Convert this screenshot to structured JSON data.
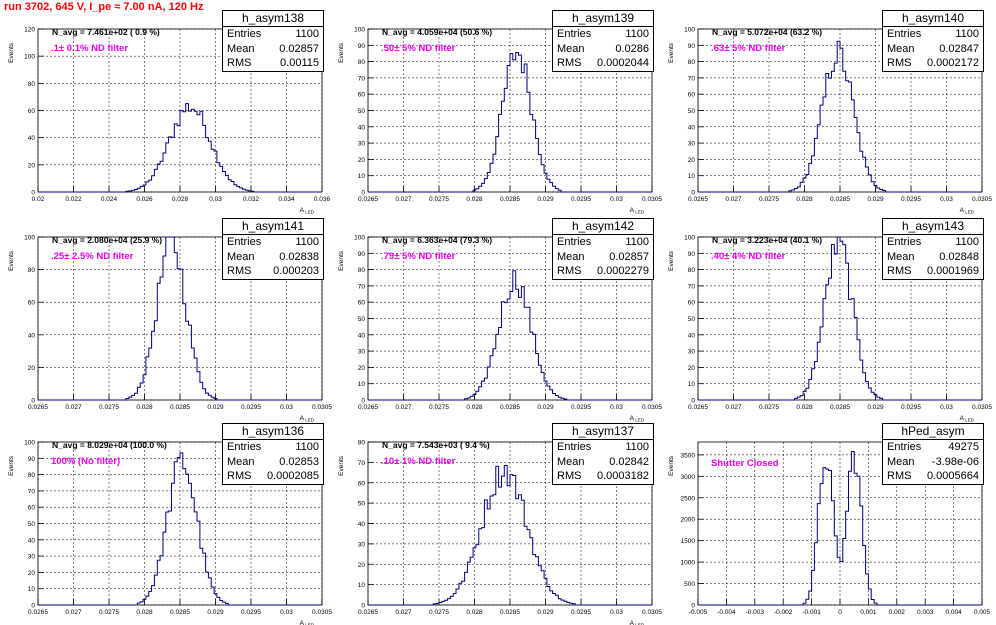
{
  "title": "run 3702,   645 V, I_pe ≈ 7.00 nA, 120 Hz",
  "colors": {
    "hist": "#000080",
    "title": "#ff0000",
    "filter": "#ee00ee"
  },
  "chart_data": [
    {
      "type": "bar",
      "stat_title": "h_asym138",
      "ylabel": "Events",
      "xlabel": "A_LED",
      "xlim": [
        0.02,
        0.036
      ],
      "ylim": [
        0,
        120
      ],
      "xticks": [
        "0.02",
        "0.022",
        "0.024",
        "0.026",
        "0.028",
        "0.03",
        "0.032",
        "0.034",
        "0.036"
      ],
      "yticks": [
        "0",
        "20",
        "40",
        "60",
        "80",
        "100",
        "120"
      ],
      "navg": "N_avg = 7.461e+02 ( 0.9 %)",
      "filter": ".1± 0.1% ND filter",
      "entries": "1100",
      "mean": "0.02857",
      "rms": "0.00115",
      "mu": 0.02857,
      "sigma": 0.00115,
      "peak": 63,
      "dist": "gauss",
      "bins": "auto"
    },
    {
      "type": "bar",
      "stat_title": "h_asym139",
      "ylabel": "Events",
      "xlabel": "A_LED",
      "xlim": [
        0.0265,
        0.0305
      ],
      "ylim": [
        0,
        100
      ],
      "xticks": [
        "0.0265",
        "0.027",
        "0.0275",
        "0.028",
        "0.0285",
        "0.029",
        "0.0295",
        "0.03",
        "0.0305"
      ],
      "yticks": [
        "0",
        "10",
        "20",
        "30",
        "40",
        "50",
        "60",
        "70",
        "80",
        "90",
        "100"
      ],
      "navg": "N_avg = 4.059e+04 (50.6 %)",
      "filter": ".50± 5% ND filter",
      "entries": "1100",
      "mean": "0.0286",
      "rms": "0.0002044",
      "mu": 0.0286,
      "sigma": 0.0002044,
      "peak": 86,
      "dist": "gauss",
      "bins": "auto"
    },
    {
      "type": "bar",
      "stat_title": "h_asym140",
      "ylabel": "Events",
      "xlabel": "A_LED",
      "xlim": [
        0.0265,
        0.0305
      ],
      "ylim": [
        0,
        100
      ],
      "xticks": [
        "0.0265",
        "0.027",
        "0.0275",
        "0.028",
        "0.0285",
        "0.029",
        "0.0295",
        "0.03",
        "0.0305"
      ],
      "yticks": [
        "0",
        "10",
        "20",
        "30",
        "40",
        "50",
        "60",
        "70",
        "80",
        "90",
        "100"
      ],
      "navg": "N_avg = 5.072e+04 (63.2 %)",
      "filter": ".63± 5% ND filter",
      "entries": "1100",
      "mean": "0.02847",
      "rms": "0.0002172",
      "mu": 0.02847,
      "sigma": 0.0002172,
      "peak": 85,
      "dist": "gauss",
      "bins": "auto"
    },
    {
      "type": "bar",
      "stat_title": "h_asym141",
      "ylabel": "Events",
      "xlabel": "A_LED",
      "xlim": [
        0.0265,
        0.0305
      ],
      "ylim": [
        0,
        100
      ],
      "xticks": [
        "0.0265",
        "0.027",
        "0.0275",
        "0.028",
        "0.0285",
        "0.029",
        "0.0295",
        "0.03",
        "0.0305"
      ],
      "yticks": [
        "0",
        "20",
        "40",
        "60",
        "80",
        "100"
      ],
      "navg": "N_avg = 2.080e+04 (25.9 %)",
      "filter": ".25± 2.5% ND filter",
      "entries": "1100",
      "mean": "0.02838",
      "rms": "0.000203",
      "mu": 0.02838,
      "sigma": 0.000203,
      "peak": 97,
      "dist": "gauss",
      "bins": "auto"
    },
    {
      "type": "bar",
      "stat_title": "h_asym142",
      "ylabel": "Events",
      "xlabel": "A_LED",
      "xlim": [
        0.0265,
        0.0305
      ],
      "ylim": [
        0,
        100
      ],
      "xticks": [
        "0.0265",
        "0.027",
        "0.0275",
        "0.028",
        "0.0285",
        "0.029",
        "0.0295",
        "0.03",
        "0.0305"
      ],
      "yticks": [
        "0",
        "10",
        "20",
        "30",
        "40",
        "50",
        "60",
        "70",
        "80",
        "90",
        "100"
      ],
      "navg": "N_avg = 6.363e+04 (79.3 %)",
      "filter": ".79± 5% ND filter",
      "entries": "1100",
      "mean": "0.02857",
      "rms": "0.0002279",
      "mu": 0.02857,
      "sigma": 0.0002279,
      "peak": 74,
      "dist": "gauss",
      "bins": "auto"
    },
    {
      "type": "bar",
      "stat_title": "h_asym143",
      "ylabel": "Events",
      "xlabel": "A_LED",
      "xlim": [
        0.0265,
        0.0305
      ],
      "ylim": [
        0,
        100
      ],
      "xticks": [
        "0.0265",
        "0.027",
        "0.0275",
        "0.028",
        "0.0285",
        "0.029",
        "0.0295",
        "0.03",
        "0.0305"
      ],
      "yticks": [
        "0",
        "10",
        "20",
        "30",
        "40",
        "50",
        "60",
        "70",
        "80",
        "90",
        "100"
      ],
      "navg": "N_avg = 3.223e+04 (40.1 %)",
      "filter": ".40± 4% ND filter",
      "entries": "1100",
      "mean": "0.02848",
      "rms": "0.0001969",
      "mu": 0.02848,
      "sigma": 0.0001969,
      "peak": 96,
      "dist": "gauss",
      "bins": "auto"
    },
    {
      "type": "bar",
      "stat_title": "h_asym136",
      "ylabel": "Events",
      "xlabel": "A_LED",
      "xlim": [
        0.0265,
        0.0305
      ],
      "ylim": [
        0,
        100
      ],
      "xticks": [
        "0.0265",
        "0.027",
        "0.0275",
        "0.028",
        "0.0285",
        "0.029",
        "0.0295",
        "0.03",
        "0.0305"
      ],
      "yticks": [
        "0",
        "10",
        "20",
        "30",
        "40",
        "50",
        "60",
        "70",
        "80",
        "90",
        "100"
      ],
      "navg": "N_avg = 8.029e+04 (100.0 %)",
      "filter": "100% (No filter)",
      "entries": "1100",
      "mean": "0.02853",
      "rms": "0.0002085",
      "mu": 0.02853,
      "sigma": 0.0002085,
      "peak": 88,
      "dist": "gauss",
      "bins": "auto"
    },
    {
      "type": "bar",
      "stat_title": "h_asym137",
      "ylabel": "Events",
      "xlabel": "A_LED",
      "xlim": [
        0.0265,
        0.0305
      ],
      "ylim": [
        0,
        80
      ],
      "xticks": [
        "0.0265",
        "0.027",
        "0.0275",
        "0.028",
        "0.0285",
        "0.029",
        "0.0295",
        "0.03",
        "0.0305"
      ],
      "yticks": [
        "0",
        "10",
        "20",
        "30",
        "40",
        "50",
        "60",
        "70",
        "80"
      ],
      "navg": "N_avg = 7.543e+03 ( 9.4 %)",
      "filter": ".10± 1% ND filter",
      "entries": "1100",
      "mean": "0.02842",
      "rms": "0.0003182",
      "mu": 0.02842,
      "sigma": 0.0003182,
      "peak": 66,
      "dist": "gauss",
      "bins": "auto"
    },
    {
      "type": "bar",
      "stat_title": "hPed_asym",
      "ylabel": "Events",
      "xlabel": "",
      "xlim": [
        -0.005,
        0.005
      ],
      "ylim": [
        0,
        3800
      ],
      "xticks": [
        "-0.005",
        "-0.004",
        "-0.003",
        "-0.002",
        "-0.001",
        "0",
        "0.001",
        "0.002",
        "0.003",
        "0.004",
        "0.005"
      ],
      "yticks": [
        "0",
        "500",
        "1000",
        "1500",
        "2000",
        "2500",
        "3000",
        "3500"
      ],
      "navg": "",
      "filter": "Shutter Closed",
      "entries": "49275",
      "mean": "-3.98e-06",
      "rms": "0.0005664",
      "mu": 0,
      "sigma": 0.0005664,
      "peak": 3500,
      "dist": "double",
      "bins": "auto"
    }
  ]
}
